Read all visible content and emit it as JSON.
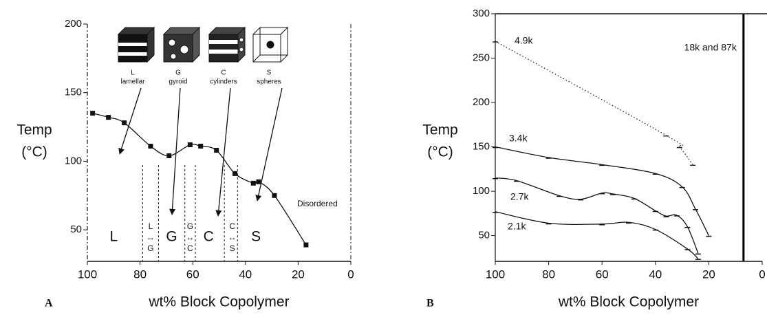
{
  "chart_data": [
    {
      "type": "line",
      "panel_label": "A",
      "xlabel": "wt% Block Copolymer",
      "ylabel": [
        "Temp",
        "(°C)"
      ],
      "xlim": [
        100,
        0
      ],
      "xticks": [
        100,
        80,
        60,
        40,
        20,
        0
      ],
      "ylim": [
        27,
        200
      ],
      "yticks": [
        50,
        100,
        150,
        200
      ],
      "series": [
        {
          "color": "#111111",
          "marker": "square",
          "x": [
            98,
            92,
            86,
            76,
            69,
            61,
            57,
            51,
            44,
            37,
            35,
            29,
            17
          ],
          "values": [
            135,
            132,
            128,
            111,
            104,
            112,
            111,
            108,
            91,
            84,
            85,
            75,
            39
          ]
        }
      ],
      "structures": [
        {
          "symbol": "L",
          "name": "lamellar"
        },
        {
          "symbol": "G",
          "name": "gyroid"
        },
        {
          "symbol": "C",
          "name": "cylinders"
        },
        {
          "symbol": "S",
          "name": "spheres"
        }
      ],
      "phases": [
        [
          "L"
        ],
        [
          "L",
          "↔",
          "G"
        ],
        [
          "G"
        ],
        [
          "G",
          "↔",
          "C"
        ],
        [
          "C"
        ],
        [
          "C",
          "↔",
          "S"
        ],
        [
          "S"
        ]
      ],
      "phase_boundaries": [
        79,
        73,
        63,
        59,
        48,
        43
      ],
      "disordered_label": "Disordered"
    },
    {
      "type": "line",
      "panel_label": "B",
      "xlabel": "wt% Block Copolymer",
      "ylabel": [
        "Temp",
        "(°C)"
      ],
      "xlim": [
        100,
        0
      ],
      "xticks": [
        100,
        80,
        60,
        40,
        20,
        0
      ],
      "ylim": [
        21,
        300
      ],
      "yticks": [
        50,
        100,
        150,
        200,
        250,
        300
      ],
      "series": [
        {
          "name": "4.9k",
          "color": "#222222",
          "dash": "dotted",
          "x": [
            100,
            36,
            31,
            26
          ],
          "values": [
            269,
            163,
            150,
            130
          ]
        },
        {
          "name": "3.4k",
          "color": "#111111",
          "x": [
            100,
            80,
            60,
            40,
            30,
            25,
            20
          ],
          "values": [
            150,
            138,
            130,
            120,
            105,
            80,
            50
          ]
        },
        {
          "name": "2.7k",
          "color": "#111111",
          "x": [
            100,
            92,
            76,
            68,
            60,
            56,
            48,
            40,
            36,
            32,
            28,
            24
          ],
          "values": [
            115,
            112,
            95,
            91,
            98,
            97,
            92,
            78,
            72,
            73,
            60,
            30
          ]
        },
        {
          "name": "2.1k",
          "color": "#111111",
          "x": [
            100,
            80,
            60,
            50,
            40,
            28,
            24
          ],
          "values": [
            77,
            64,
            63,
            65,
            57,
            35,
            24
          ]
        },
        {
          "name": "18k and 87k",
          "color": "#000000",
          "width": 3,
          "x": [
            7,
            7
          ],
          "values": [
            300,
            21
          ]
        }
      ]
    }
  ]
}
